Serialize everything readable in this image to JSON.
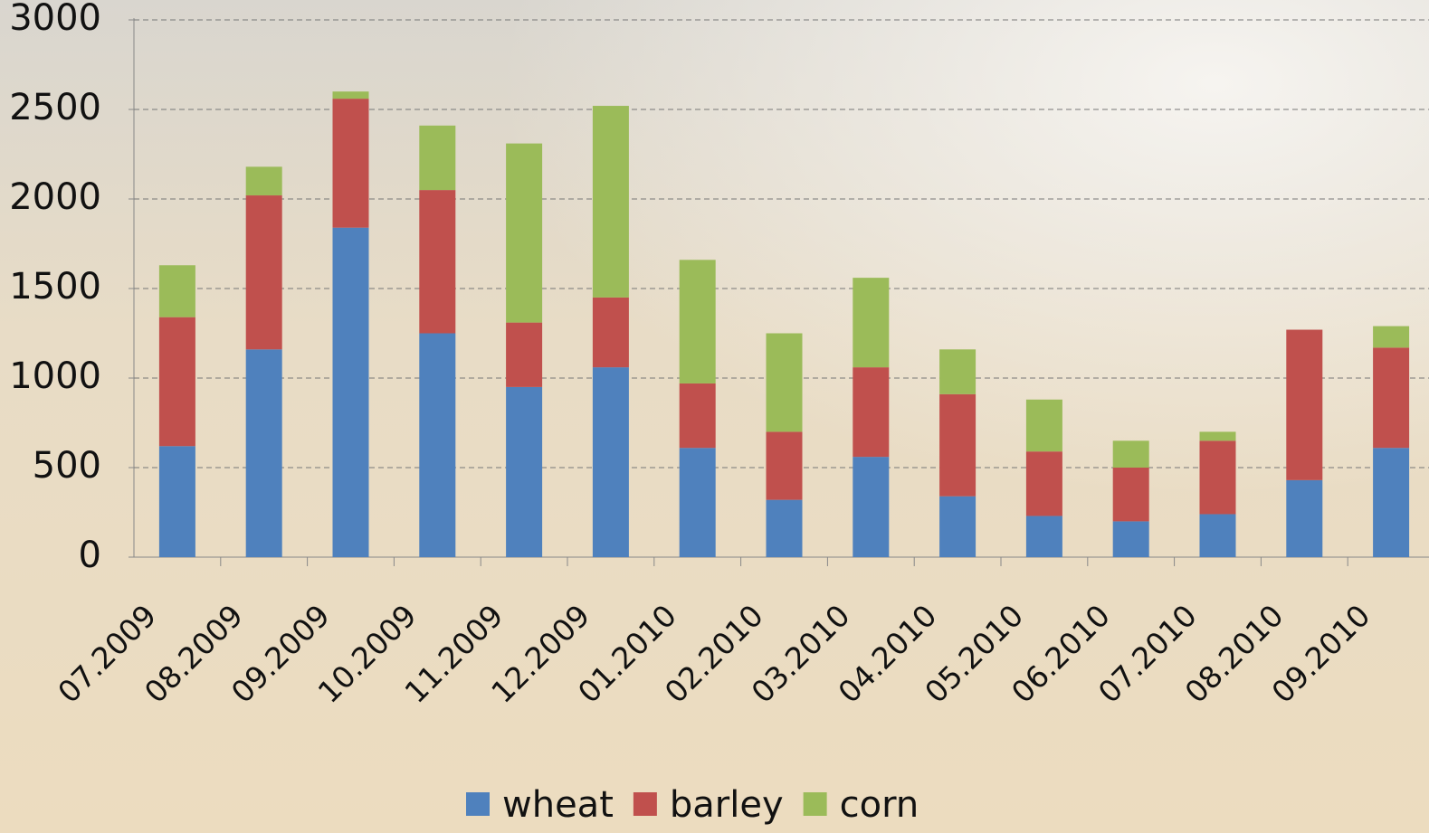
{
  "chart_data": {
    "type": "stacked-bar",
    "categories": [
      "07.2009",
      "08.2009",
      "09.2009",
      "10.2009",
      "11.2009",
      "12.2009",
      "01.2010",
      "02.2010",
      "03.2010",
      "04.2010",
      "05.2010",
      "06.2010",
      "07.2010",
      "08.2010",
      "09.2010"
    ],
    "series": [
      {
        "name": "wheat",
        "color": "#4f81bd",
        "values": [
          620,
          1160,
          1840,
          1250,
          950,
          1060,
          610,
          320,
          560,
          340,
          230,
          200,
          240,
          430,
          610
        ]
      },
      {
        "name": "barley",
        "color": "#c0504d",
        "values": [
          720,
          860,
          720,
          800,
          360,
          390,
          360,
          380,
          500,
          570,
          360,
          300,
          410,
          840,
          560
        ]
      },
      {
        "name": "corn",
        "color": "#9bbb59",
        "values": [
          290,
          160,
          40,
          360,
          1000,
          1070,
          690,
          550,
          500,
          250,
          290,
          150,
          50,
          0,
          120
        ]
      }
    ],
    "ylim": [
      0,
      3000
    ],
    "yticks": [
      0,
      500,
      1000,
      1500,
      2000,
      2500,
      3000
    ],
    "grid": true,
    "legend": "bottom"
  }
}
